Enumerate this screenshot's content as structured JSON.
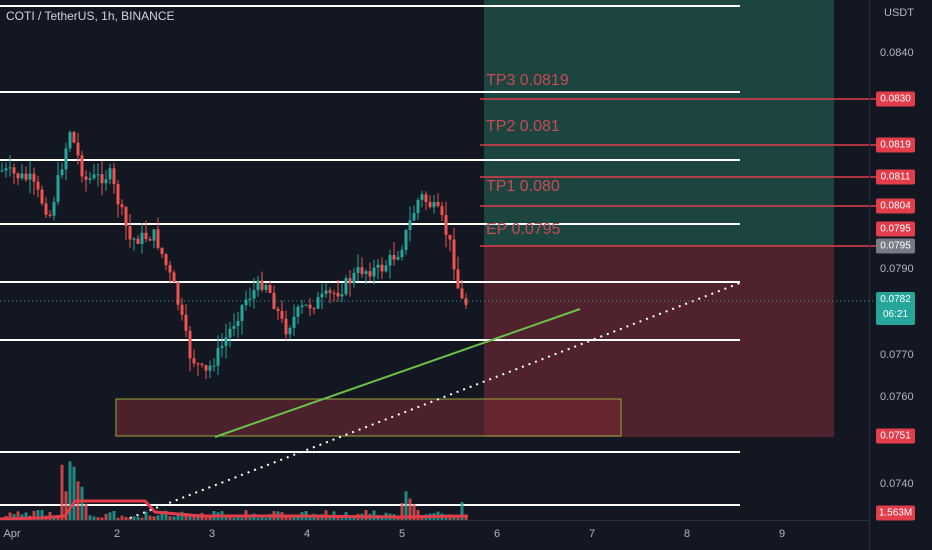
{
  "header": {
    "symbol_title": "COTI / TetherUS, 1h, BINANCE"
  },
  "price_axis": {
    "unit": "USDT",
    "ticks": [
      "0.0840",
      "0.0830",
      "0.0819",
      "0.0811",
      "0.0804",
      "0.0795",
      "0.0790",
      "0.0782",
      "0.0770",
      "0.0760",
      "0.0751",
      "0.0740"
    ],
    "ticks_plain": [
      {
        "value": "0.0840",
        "label": "0.0840"
      },
      {
        "value": "0.0790",
        "label": "0.0790"
      },
      {
        "value": "0.0770",
        "label": "0.0770"
      },
      {
        "value": "0.0760",
        "label": "0.0760"
      },
      {
        "value": "0.0740",
        "label": "0.0740"
      }
    ],
    "badges": [
      {
        "label": "0.0830",
        "color": "#e23d4b"
      },
      {
        "label": "0.0819",
        "color": "#e23d4b"
      },
      {
        "label": "0.0811",
        "color": "#e23d4b"
      },
      {
        "label": "0.0804",
        "color": "#e23d4b"
      },
      {
        "label": "0.0795",
        "color": "#e23d4b"
      },
      {
        "label": "0.0795",
        "color": "#787b86"
      },
      {
        "label": "0.0751",
        "color": "#e23d4b"
      },
      {
        "label": "1.563M",
        "color": "#e23d4b"
      }
    ],
    "current": {
      "price": "0.0782",
      "countdown": "06:21",
      "color": "#26a69a"
    }
  },
  "time_axis": {
    "labels": [
      "Apr",
      "2",
      "3",
      "4",
      "5",
      "6",
      "7",
      "8",
      "9"
    ]
  },
  "annotations": {
    "tp3": "TP3 0.0819",
    "tp2": "TP2 0.081",
    "tp1": "TP1 0.080",
    "ep": "EP 0.0795"
  },
  "colors": {
    "background": "#131722",
    "up": "#26a69a",
    "down": "#ef5350",
    "target_zone": "#1e4d45",
    "stop_zone": "#5a2530",
    "tp_text": "#c84a55",
    "trendline": "#6cc04a"
  }
}
